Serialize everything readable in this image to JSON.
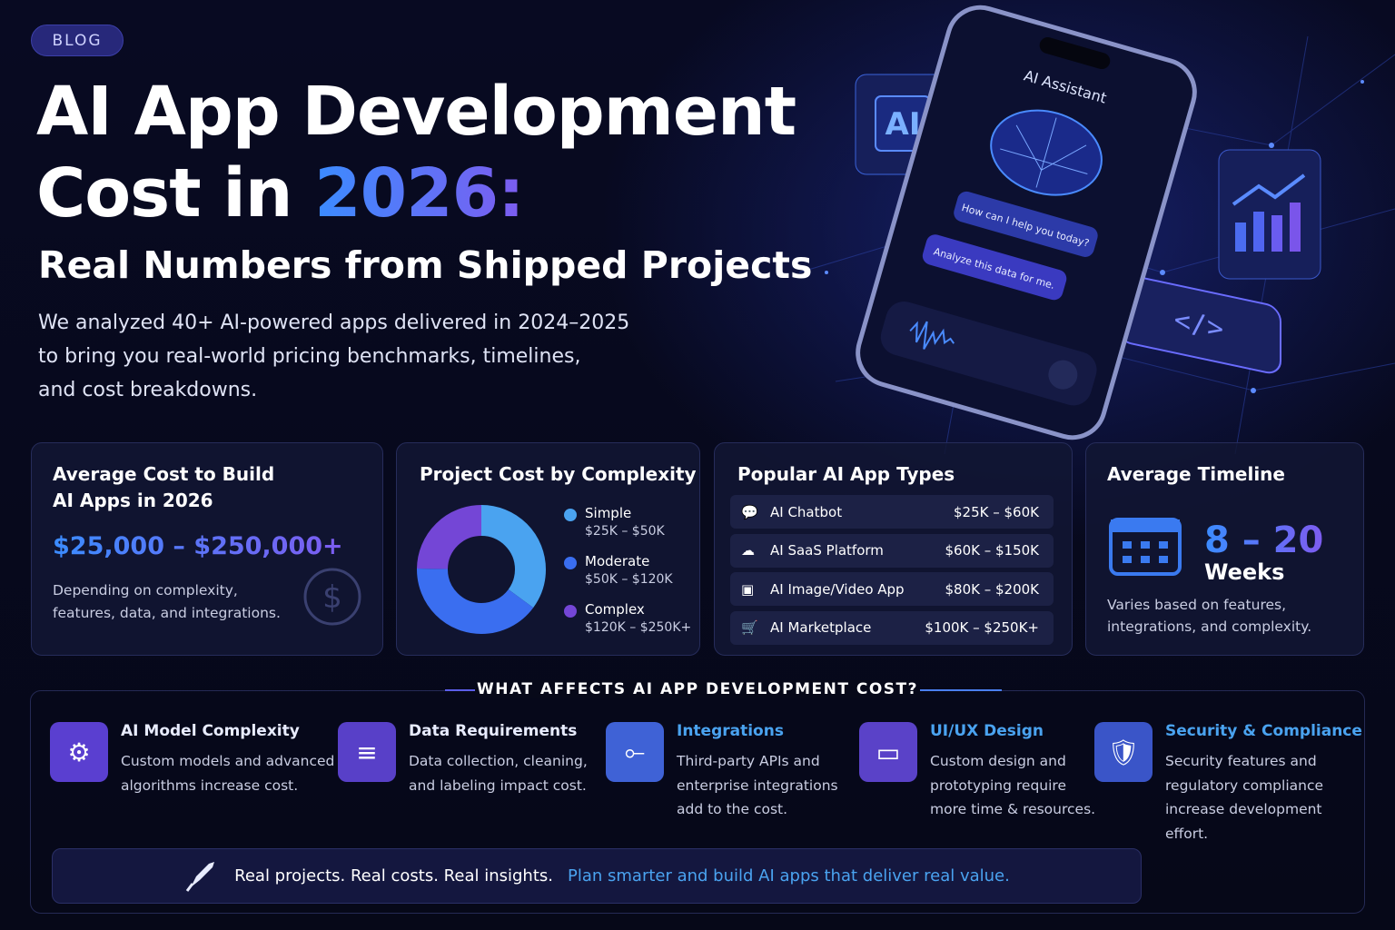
{
  "badge": "BLOG",
  "hero": {
    "title_line1": "AI App Development",
    "title_line2_prefix": "Cost in",
    "title_highlight": "2026:",
    "subtitle": "Real Numbers from Shipped Projects",
    "description_lines": [
      "We analyzed 40+ AI-powered apps delivered in 2024–2025",
      "to bring you real-world pricing benchmarks, timelines,",
      "and cost breakdowns."
    ]
  },
  "phone": {
    "header": "AI Assistant",
    "messages": [
      "How can I help you today?",
      "Analyze this data for me."
    ]
  },
  "cards": {
    "average_cost": {
      "title_lines": [
        "Average Cost to Build",
        "AI Apps in 2026"
      ],
      "range": "$25,000 – $250,000+",
      "note_lines": [
        "Depending on complexity,",
        "features, data, and integrations."
      ]
    },
    "complexity": {
      "title": "Project Cost by Complexity",
      "legend": [
        {
          "name": "Simple",
          "range": "$25K – $50K",
          "color": "#4aa3f0"
        },
        {
          "name": "Moderate",
          "range": "$50K – $120K",
          "color": "#3a6ef0"
        },
        {
          "name": "Complex",
          "range": "$120K – $250K+",
          "color": "#7446d6"
        }
      ]
    },
    "app_types": {
      "title": "Popular AI App Types",
      "rows": [
        {
          "name": "AI Chatbot",
          "range": "$25K – $60K"
        },
        {
          "name": "AI SaaS Platform",
          "range": "$60K – $150K"
        },
        {
          "name": "AI Image/Video App",
          "range": "$80K – $200K"
        },
        {
          "name": "AI Marketplace",
          "range": "$100K – $250K+"
        }
      ]
    },
    "timeline": {
      "title": "Average Timeline",
      "value": "8 – 20",
      "unit": "Weeks",
      "note_lines": [
        "Varies based on features,",
        "integrations, and complexity."
      ]
    }
  },
  "factors": {
    "heading": "WHAT AFFECTS AI APP DEVELOPMENT COST?",
    "items": [
      {
        "title": "AI Model Complexity",
        "description_lines": [
          "Custom models and advanced",
          "algorithms increase cost."
        ]
      },
      {
        "title": "Data Requirements",
        "description_lines": [
          "Data collection, cleaning,",
          "and labeling impact cost."
        ]
      },
      {
        "title": "Integrations",
        "description_lines": [
          "Third-party APIs and",
          "enterprise integrations",
          "add to the cost."
        ]
      },
      {
        "title": "UI/UX Design",
        "description_lines": [
          "Custom design and",
          "prototyping require",
          "more time & resources."
        ]
      },
      {
        "title": "Security & Compliance",
        "description_lines": [
          "Security features and",
          "regulatory compliance",
          "increase development",
          "effort."
        ]
      }
    ]
  },
  "footer": {
    "text": "Real projects. Real costs. Real insights.",
    "highlight": "Plan smarter and build AI apps that deliver real value."
  }
}
